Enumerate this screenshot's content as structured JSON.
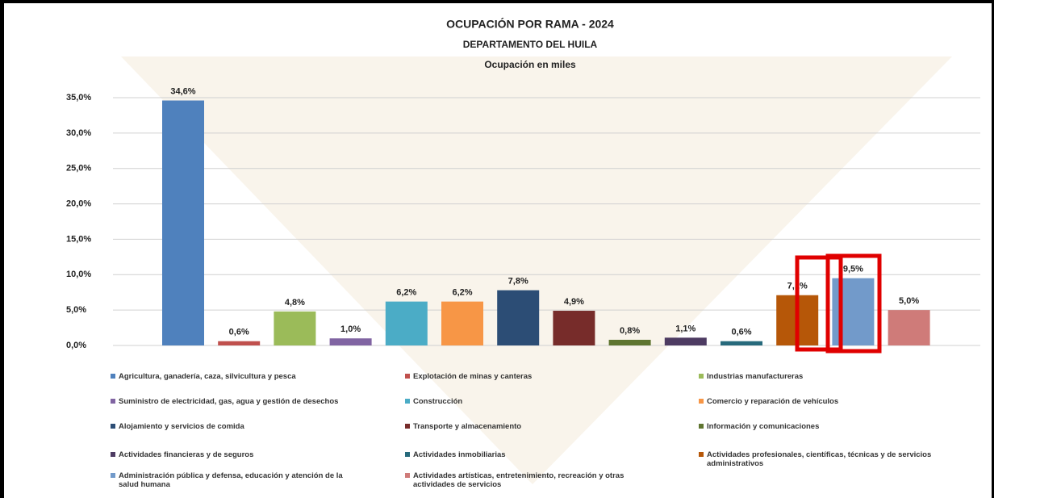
{
  "chart_data": {
    "type": "bar",
    "title": "OCUPACIÓN POR RAMA - 2024",
    "subtitle": [
      "DEPARTAMENTO DEL HUILA",
      "Ocupación en miles"
    ],
    "categories": [
      "Agricultura, ganadería, caza, silvicultura y pesca",
      "Explotación de minas y canteras",
      "Industrias manufactureras",
      "Suministro de electricidad, gas, agua y gestión de desechos",
      "Construcción",
      "Comercio y reparación de vehículos",
      "Alojamiento y servicios de comida",
      "Transporte y almacenamiento",
      "Información y comunicaciones",
      "Actividades financieras y de seguros",
      "Actividades inmobiliarias",
      "Actividades profesionales, científicas, técnicas y de servicios administrativos",
      "Administración pública y defensa, educación y atención de la salud humana",
      "Actividades artísticas, entretenimiento, recreación y otras actividades de servicios"
    ],
    "values": [
      34.6,
      0.6,
      4.8,
      1.0,
      6.2,
      6.2,
      7.8,
      4.9,
      0.8,
      1.1,
      0.6,
      7.1,
      9.5,
      5.0
    ],
    "value_labels": [
      "34,6%",
      "0,6%",
      "4,8%",
      "1,0%",
      "6,2%",
      "6,2%",
      "7,8%",
      "4,9%",
      "0,8%",
      "1,1%",
      "0,6%",
      "7,1%",
      "9,5%",
      "5,0%"
    ],
    "colors": [
      "#4f81bd",
      "#c0504d",
      "#9bbb59",
      "#8064a2",
      "#4bacc6",
      "#f79646",
      "#2c4d75",
      "#772c2a",
      "#5f7530",
      "#4d3b62",
      "#276a7c",
      "#b65708",
      "#729aca",
      "#cf7b79"
    ],
    "ylim": [
      0,
      35
    ],
    "yticks": [
      {
        "value": 0,
        "label": "0,0%"
      },
      {
        "value": 5,
        "label": "5,0%"
      },
      {
        "value": 10,
        "label": "10,0%"
      },
      {
        "value": 15,
        "label": "15,0%"
      },
      {
        "value": 20,
        "label": "20,0%"
      },
      {
        "value": 25,
        "label": "25,0%"
      },
      {
        "value": 30,
        "label": "30,0%"
      },
      {
        "value": 35,
        "label": "35,0%"
      }
    ],
    "grid": true
  }
}
